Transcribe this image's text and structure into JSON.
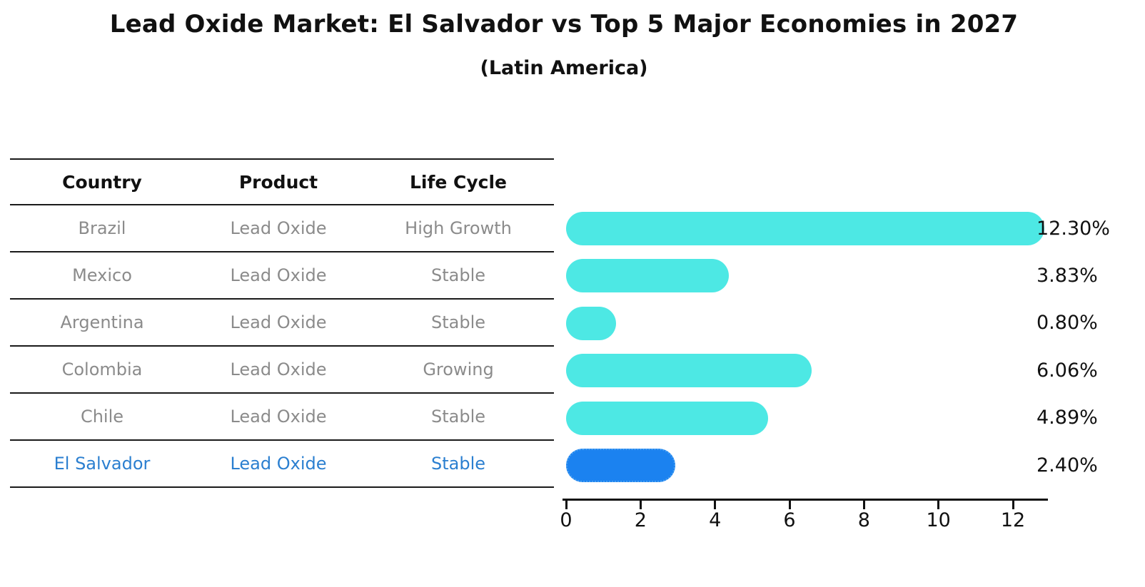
{
  "chart_data": {
    "type": "bar",
    "orientation": "horizontal",
    "title": "Lead Oxide Market: El Salvador vs Top 5 Major Economies in 2027",
    "subtitle": "(Latin America)",
    "xlabel": "",
    "ylabel": "",
    "xlim": [
      0,
      13
    ],
    "x_ticks": [
      0,
      2,
      4,
      6,
      8,
      10,
      12
    ],
    "grid": false,
    "table_headers": [
      "Country",
      "Product",
      "Life Cycle"
    ],
    "rows": [
      {
        "country": "Brazil",
        "product": "Lead Oxide",
        "life_cycle": "High Growth",
        "value": 12.3,
        "value_label": "12.30%",
        "highlight": false
      },
      {
        "country": "Mexico",
        "product": "Lead Oxide",
        "life_cycle": "Stable",
        "value": 3.83,
        "value_label": "3.83%",
        "highlight": false
      },
      {
        "country": "Argentina",
        "product": "Lead Oxide",
        "life_cycle": "Stable",
        "value": 0.8,
        "value_label": "0.80%",
        "highlight": false
      },
      {
        "country": "Colombia",
        "product": "Lead Oxide",
        "life_cycle": "Growing",
        "value": 6.06,
        "value_label": "6.06%",
        "highlight": false
      },
      {
        "country": "Chile",
        "product": "Lead Oxide",
        "life_cycle": "Stable",
        "value": 4.89,
        "value_label": "4.89%",
        "highlight": false
      },
      {
        "country": "El Salvador",
        "product": "Lead Oxide",
        "life_cycle": "Stable",
        "value": 2.4,
        "value_label": "2.40%",
        "highlight": true
      }
    ],
    "colors": {
      "bar_default": "#4DE8E4",
      "bar_highlight": "#1B82F0",
      "bar_highlight_border": "#49A0F2",
      "highlight_text": "#2B7FD0",
      "text": "#111111",
      "muted_text": "#8B8B8B"
    }
  }
}
